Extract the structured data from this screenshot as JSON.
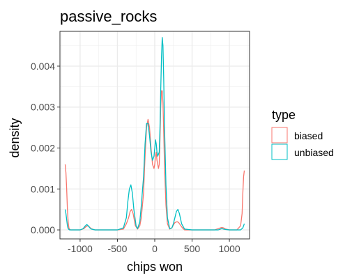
{
  "chart_data": {
    "type": "line",
    "title": "passive_rocks",
    "xlabel": "chips won",
    "ylabel": "density",
    "xlim": [
      -1270,
      1270
    ],
    "ylim": [
      -0.00022,
      0.00485
    ],
    "x_ticks": [
      -1000,
      -500,
      0,
      500,
      1000
    ],
    "x_tick_labels": [
      "-1000",
      "-500",
      "0",
      "500",
      "1000"
    ],
    "y_ticks": [
      0,
      0.001,
      0.002,
      0.003,
      0.004
    ],
    "y_tick_labels": [
      "0.000",
      "0.001",
      "0.002",
      "0.003",
      "0.004"
    ],
    "grid": true,
    "legend_position": "right",
    "legend_title": "type",
    "series": [
      {
        "name": "biased",
        "color": "#F8766D",
        "x": [
          -1200,
          -1190,
          -1180,
          -1170,
          -1160,
          -1150,
          -1140,
          -1120,
          -1100,
          -1000,
          -950,
          -920,
          -900,
          -880,
          -850,
          -800,
          -500,
          -420,
          -380,
          -350,
          -330,
          -310,
          -290,
          -260,
          -230,
          -200,
          -180,
          -150,
          -130,
          -110,
          -90,
          -70,
          -50,
          -30,
          -10,
          0,
          10,
          20,
          30,
          50,
          60,
          70,
          80,
          90,
          100,
          110,
          120,
          130,
          150,
          170,
          200,
          230,
          250,
          270,
          300,
          320,
          350,
          380,
          400,
          500,
          800,
          850,
          880,
          900,
          920,
          950,
          1000,
          1100,
          1150,
          1170,
          1180,
          1190,
          1200
        ],
        "y": [
          0.0016,
          0.0014,
          0.001,
          0.0005,
          0.0002,
          5e-05,
          1e-05,
          0,
          0,
          0,
          3e-05,
          8e-05,
          0.0001,
          8e-05,
          3e-05,
          0,
          0,
          2e-05,
          0.00015,
          0.0003,
          0.00045,
          0.0005,
          0.0004,
          0.0001,
          2e-05,
          0.0001,
          0.0003,
          0.0009,
          0.0018,
          0.0025,
          0.0027,
          0.0025,
          0.002,
          0.0016,
          0.0015,
          0.0016,
          0.0018,
          0.0019,
          0.0017,
          0.0015,
          0.0016,
          0.0022,
          0.003,
          0.0034,
          0.0034,
          0.0031,
          0.0024,
          0.0016,
          0.0006,
          0.00015,
          2e-05,
          5e-05,
          0.00012,
          0.00018,
          0.0002,
          0.00018,
          0.0001,
          3e-05,
          0,
          0,
          0,
          3e-05,
          5e-05,
          6e-05,
          5e-05,
          2e-05,
          0,
          0,
          0.0001,
          0.0004,
          0.0009,
          0.0013,
          0.00145
        ]
      },
      {
        "name": "unbiased",
        "color": "#00BFC4",
        "x": [
          -1200,
          -1190,
          -1180,
          -1170,
          -1160,
          -1150,
          -1140,
          -1100,
          -1000,
          -960,
          -930,
          -910,
          -890,
          -870,
          -850,
          -800,
          -500,
          -420,
          -380,
          -360,
          -340,
          -320,
          -300,
          -280,
          -250,
          -230,
          -200,
          -180,
          -150,
          -130,
          -110,
          -90,
          -70,
          -50,
          -30,
          -10,
          0,
          10,
          20,
          30,
          40,
          60,
          70,
          80,
          90,
          100,
          110,
          120,
          130,
          150,
          170,
          200,
          230,
          250,
          270,
          290,
          310,
          330,
          360,
          400,
          500,
          850,
          880,
          900,
          920,
          950,
          1000,
          1150,
          1180,
          1190,
          1200
        ],
        "y": [
          0.0005,
          0.0004,
          0.00025,
          0.0001,
          3e-05,
          1e-05,
          0,
          0,
          0,
          3e-05,
          0.0001,
          0.00013,
          0.0001,
          5e-05,
          2e-05,
          0,
          0,
          5e-05,
          0.0003,
          0.0007,
          0.001,
          0.0011,
          0.0009,
          0.0005,
          0.0001,
          3e-05,
          0.0002,
          0.0006,
          0.0013,
          0.0021,
          0.0026,
          0.0026,
          0.0023,
          0.0019,
          0.0017,
          0.0018,
          0.002,
          0.0022,
          0.0021,
          0.0019,
          0.0018,
          0.0019,
          0.0025,
          0.0034,
          0.0042,
          0.0047,
          0.0045,
          0.0037,
          0.0026,
          0.0011,
          0.0003,
          3e-05,
          5e-05,
          0.00015,
          0.0003,
          0.00045,
          0.0005,
          0.0004,
          0.00015,
          2e-05,
          0,
          0,
          2e-05,
          3e-05,
          2e-05,
          1e-05,
          0,
          0,
          5e-05,
          0.0001,
          0.00015
        ]
      }
    ]
  }
}
